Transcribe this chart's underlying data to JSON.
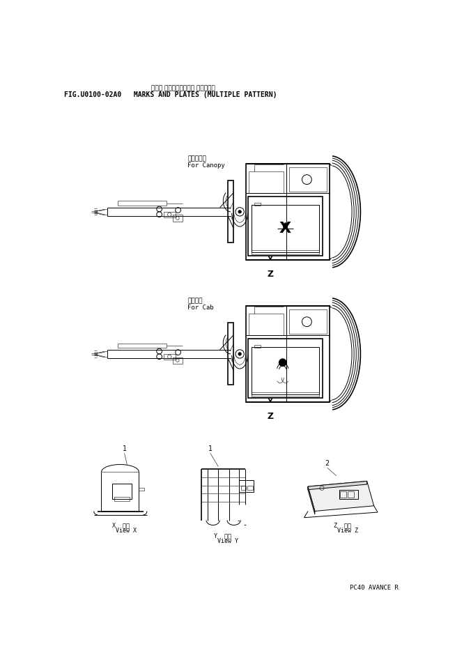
{
  "title_jp": "マーク プレート（マルチ パターン）",
  "title_en": "FIG.U0100-02A0   MARKS AND PLATES (MULTIPLE PATTERN)",
  "footer": "PC40 AVANCE R",
  "bg_color": "#ffffff",
  "line_color": "#000000",
  "diagram1_label_jp": "キャノピ用",
  "diagram1_label_en": "For Canopy",
  "diagram2_label_jp": "キャブ用",
  "diagram2_label_en": "For Cab",
  "view_x_label": "X  正面\nView X",
  "view_y_label": "Y  正面\nView Y",
  "view_z_label": "Z  正面\nView Z",
  "label_1a": "1",
  "label_1b": "1",
  "label_2": "2"
}
